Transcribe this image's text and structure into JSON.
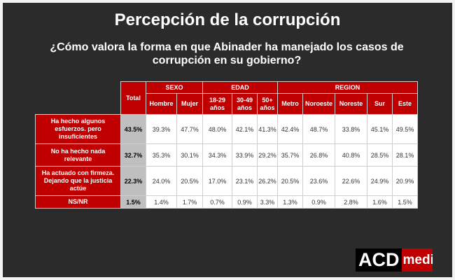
{
  "title": "Percepción de la corrupción",
  "subtitle": "¿Cómo valora la forma en que Abinader ha manejado los casos de corrupción en su gobierno?",
  "table": {
    "total_label": "Total",
    "groups": [
      "SEXO",
      "EDAD",
      "REGION"
    ],
    "columns": [
      "Hombre",
      "Mujer",
      "18-29 años",
      "30-49 años",
      "50+ años",
      "Metro",
      "Noroeste",
      "Noreste",
      "Sur",
      "Este"
    ],
    "rows": [
      {
        "label": "Ha hecho algunos esfuerzos. pero insuficientes",
        "total": "43.5%",
        "values": [
          "39.3%",
          "47.7%",
          "48.0%",
          "42.1%",
          "41.3%",
          "42.4%",
          "48.7%",
          "33.8%",
          "45.1%",
          "49.5%"
        ]
      },
      {
        "label": "No ha hecho nada relevante",
        "total": "32.7%",
        "values": [
          "35.3%",
          "30.1%",
          "34.3%",
          "33.9%",
          "29.2%",
          "35.7%",
          "26.8%",
          "40.8%",
          "28.5%",
          "28.1%"
        ]
      },
      {
        "label": "Ha actuado con firmeza. Dejando que la justicia actúe",
        "total": "22.3%",
        "values": [
          "24.0%",
          "20.5%",
          "17.0%",
          "23.1%",
          "26.2%",
          "20.5%",
          "23.6%",
          "22.6%",
          "24.9%",
          "20.9%"
        ]
      },
      {
        "label": "NS/NR",
        "total": "1.5%",
        "values": [
          "1.4%",
          "1.7%",
          "0.7%",
          "0.9%",
          "3.3%",
          "1.3%",
          "0.9%",
          "2.8%",
          "1.6%",
          "1.5%"
        ]
      }
    ]
  },
  "logo": {
    "part1": "ACD",
    "part2": "medi"
  },
  "colors": {
    "background": "#2b2b2b",
    "accent_red": "#c00000",
    "total_gray": "#bfbfbf"
  }
}
